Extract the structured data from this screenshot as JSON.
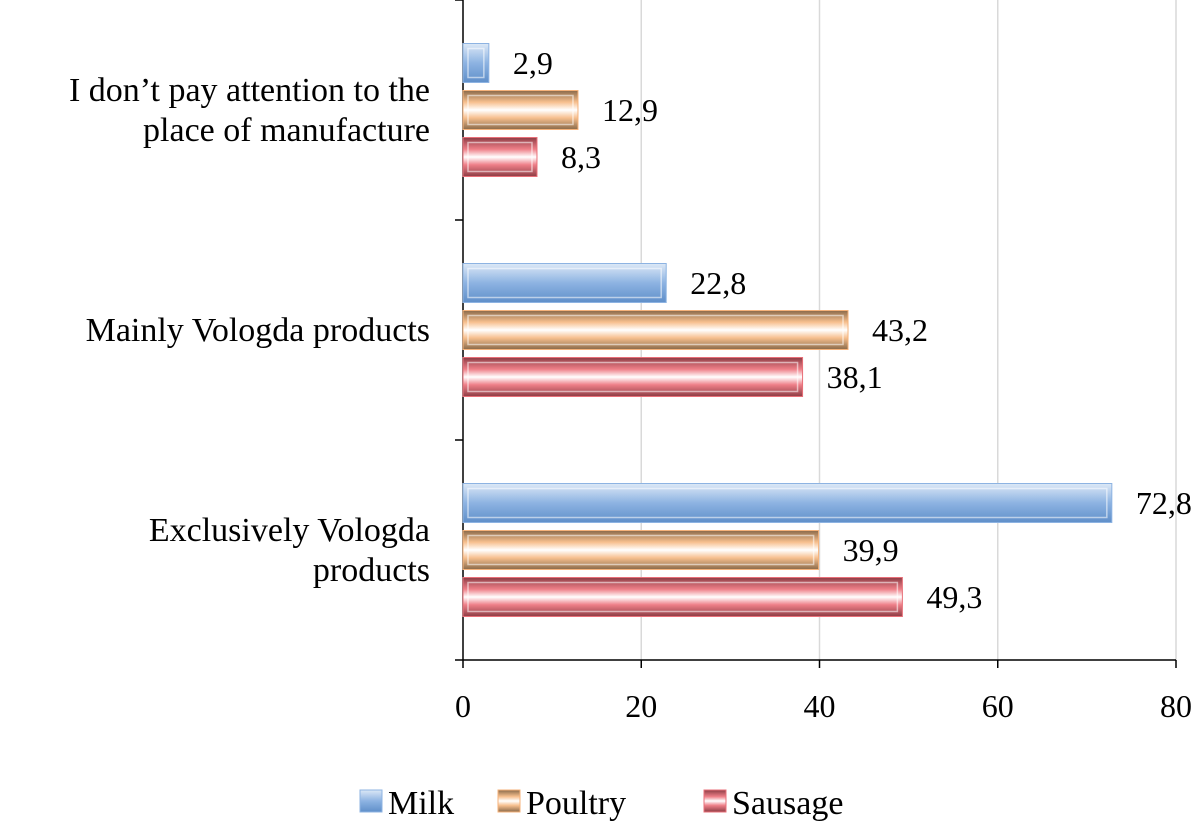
{
  "chart_data": {
    "type": "bar",
    "orientation": "horizontal",
    "categories": [
      [
        "I don’t pay attention to the",
        "place of manufacture"
      ],
      [
        "Mainly Vologda products"
      ],
      [
        "Exclusively Vologda",
        "products"
      ]
    ],
    "series": [
      {
        "name": "Milk",
        "values": [
          2.9,
          22.8,
          72.8
        ],
        "labels": [
          "2,9",
          "22,8",
          "72,8"
        ],
        "color": "#8db3e2"
      },
      {
        "name": "Poultry",
        "values": [
          12.9,
          43.2,
          39.9
        ],
        "labels": [
          "12,9",
          "43,2",
          "39,9"
        ],
        "color": "#f5b27a"
      },
      {
        "name": "Sausage",
        "values": [
          8.3,
          38.1,
          49.3
        ],
        "labels": [
          "8,3",
          "38,1",
          "49,3"
        ],
        "color": "#e86f78"
      }
    ],
    "xlim": [
      0,
      80
    ],
    "xticks": [
      0,
      20,
      40,
      60,
      80
    ],
    "grid": true,
    "legend": "bottom",
    "title": "",
    "xlabel": "",
    "ylabel": ""
  }
}
